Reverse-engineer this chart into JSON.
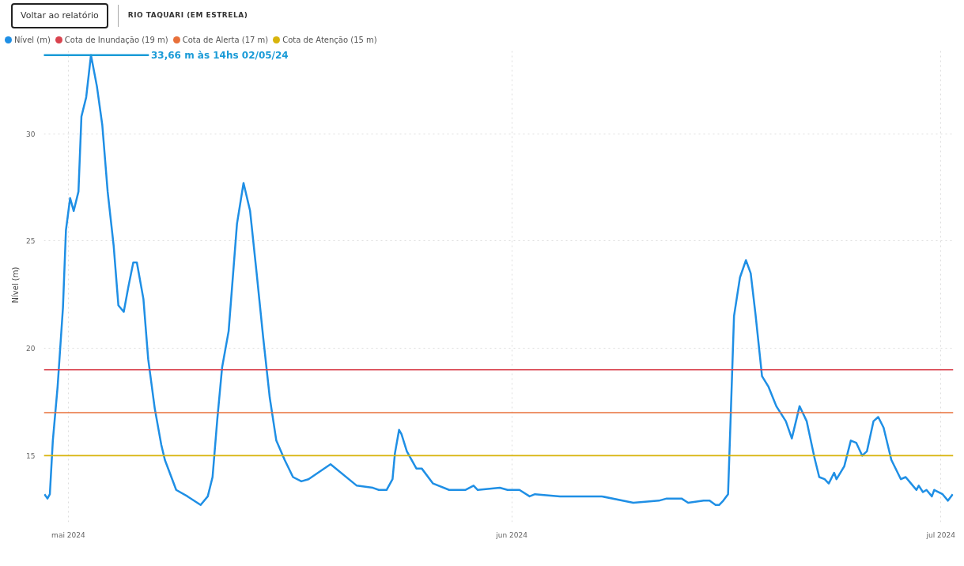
{
  "chart_data": {
    "type": "line",
    "title": "RIO TAQUARI (EM ESTRELA)",
    "ylabel": "Nível (m)",
    "annotations": [
      "Voltar ao relatório",
      "33,66 m às 14hs 02/05/24"
    ],
    "x": [
      "2024-04-29T08:00",
      "2024-04-29T13:00",
      "2024-04-29T17:00",
      "2024-04-29T22:00",
      "2024-04-30T06:00",
      "2024-04-30T15:00",
      "2024-04-30T20:00",
      "2024-05-01T03:00",
      "2024-05-01T09:00",
      "2024-05-01T17:00",
      "2024-05-01T22:00",
      "2024-05-02T06:00",
      "2024-05-02T14:00",
      "2024-05-03T00:00",
      "2024-05-03T09:00",
      "2024-05-03T18:00",
      "2024-05-04T04:00",
      "2024-05-04T12:00",
      "2024-05-04T21:00",
      "2024-05-05T05:00",
      "2024-05-05T13:00",
      "2024-05-05T19:00",
      "2024-05-06T06:00",
      "2024-05-06T14:00",
      "2024-05-07T01:00",
      "2024-05-07T12:00",
      "2024-05-07T18:00",
      "2024-05-08T13:00",
      "2024-05-09T08:00",
      "2024-05-10T06:00",
      "2024-05-10T18:00",
      "2024-05-11T02:00",
      "2024-05-11T10:00",
      "2024-05-11T18:00",
      "2024-05-12T05:00",
      "2024-05-12T19:00",
      "2024-05-13T06:00",
      "2024-05-13T17:00",
      "2024-05-14T04:00",
      "2024-05-14T15:00",
      "2024-05-15T02:00",
      "2024-05-15T13:00",
      "2024-05-16T03:00",
      "2024-05-16T17:00",
      "2024-05-17T07:00",
      "2024-05-17T19:00",
      "2024-05-19T08:00",
      "2024-05-21T04:00",
      "2024-05-22T07:00",
      "2024-05-22T17:00",
      "2024-05-23T06:00",
      "2024-05-23T16:00",
      "2024-05-23T20:00",
      "2024-05-24T03:00",
      "2024-05-24T07:00",
      "2024-05-24T16:00",
      "2024-05-25T08:00",
      "2024-05-25T17:00",
      "2024-05-26T12:00",
      "2024-05-27T15:00",
      "2024-05-28T18:00",
      "2024-05-29T08:00",
      "2024-05-29T15:00",
      "2024-05-31T04:00",
      "2024-05-31T17:00",
      "2024-06-01T13:00",
      "2024-06-02T06:00",
      "2024-06-02T15:00",
      "2024-06-04T09:00",
      "2024-06-04T16:00",
      "2024-06-05T03:00",
      "2024-06-07T07:00",
      "2024-06-09T12:00",
      "2024-06-11T07:00",
      "2024-06-11T20:00",
      "2024-06-12T21:00",
      "2024-06-13T08:00",
      "2024-06-14T10:00",
      "2024-06-14T20:00",
      "2024-06-15T06:00",
      "2024-06-15T12:00",
      "2024-06-15T19:00",
      "2024-06-16T03:00",
      "2024-06-16T08:00",
      "2024-06-16T13:00",
      "2024-06-16T23:00",
      "2024-06-17T09:00",
      "2024-06-17T17:00",
      "2024-06-18T01:00",
      "2024-06-18T12:00",
      "2024-06-18T23:00",
      "2024-06-19T12:00",
      "2024-06-20T04:00",
      "2024-06-20T14:00",
      "2024-06-21T03:00",
      "2024-06-21T15:00",
      "2024-06-22T04:00",
      "2024-06-22T12:00",
      "2024-06-22T21:00",
      "2024-06-23T04:00",
      "2024-06-23T13:00",
      "2024-06-23T17:00",
      "2024-06-24T06:00",
      "2024-06-24T17:00",
      "2024-06-25T02:00",
      "2024-06-25T12:00",
      "2024-06-25T20:00",
      "2024-06-26T07:00",
      "2024-06-26T15:00",
      "2024-06-27T00:00",
      "2024-06-27T13:00",
      "2024-06-28T05:00",
      "2024-06-28T13:00",
      "2024-06-28T22:00",
      "2024-06-29T07:00",
      "2024-06-29T11:00",
      "2024-06-29T18:00",
      "2024-06-30T00:00",
      "2024-06-30T09:00",
      "2024-06-30T13:00",
      "2024-07-01T03:00",
      "2024-07-01T12:00",
      "2024-07-01T20:00"
    ],
    "series": [
      {
        "name": "Nível (m)",
        "color": "#1f8fe5",
        "values": [
          13.2,
          13.0,
          13.2,
          15.7,
          18.2,
          21.9,
          25.5,
          27.0,
          26.4,
          27.3,
          30.8,
          31.7,
          33.66,
          32.2,
          30.4,
          27.3,
          24.8,
          22.0,
          21.7,
          22.9,
          24.0,
          24.0,
          22.3,
          19.5,
          17.2,
          15.5,
          14.8,
          13.4,
          13.1,
          12.7,
          13.1,
          14.0,
          16.7,
          19.1,
          20.8,
          25.8,
          27.7,
          26.4,
          23.5,
          20.5,
          17.7,
          15.7,
          14.8,
          14.0,
          13.8,
          13.9,
          14.6,
          13.6,
          13.5,
          13.4,
          13.4,
          13.9,
          15.1,
          16.2,
          16.0,
          15.2,
          14.4,
          14.4,
          13.7,
          13.4,
          13.4,
          13.6,
          13.4,
          13.5,
          13.4,
          13.4,
          13.1,
          13.2,
          13.1,
          13.1,
          13.1,
          13.1,
          12.8,
          12.9,
          13.0,
          13.0,
          12.8,
          12.9,
          12.9,
          12.7,
          12.7,
          12.9,
          13.2,
          17.3,
          21.5,
          23.3,
          24.1,
          23.5,
          21.6,
          18.7,
          18.2,
          17.3,
          16.6,
          15.8,
          17.3,
          16.6,
          14.9,
          14.0,
          13.9,
          13.7,
          14.2,
          13.9,
          14.5,
          15.7,
          15.6,
          15.0,
          15.2,
          16.6,
          16.8,
          16.3,
          14.8,
          13.9,
          14.0,
          13.7,
          13.4,
          13.6,
          13.3,
          13.4,
          13.1,
          13.4,
          13.2,
          12.9,
          13.2
        ]
      }
    ],
    "ref_lines": [
      {
        "axis": "y",
        "value": 19,
        "label": "Cota de Inundação (19 m)",
        "color": "#d9434e"
      },
      {
        "axis": "y",
        "value": 17,
        "label": "Cota de Alerta (17 m)",
        "color": "#e8703a"
      },
      {
        "axis": "y",
        "value": 15,
        "label": "Cota de Atenção (15 m)",
        "color": "#d8b40c"
      }
    ],
    "xlim": [
      "2024-04-29T07:00",
      "2024-07-01T21:00"
    ],
    "xticks": [
      {
        "value": "2024-05-01",
        "label": "mai 2024"
      },
      {
        "value": "2024-06-01",
        "label": "jun 2024"
      },
      {
        "value": "2024-07-01",
        "label": "jul 2024"
      }
    ],
    "ylim": [
      11.9,
      34.0
    ],
    "yticks": [
      15,
      20,
      25,
      30
    ],
    "grid": true,
    "legend": "top left",
    "marker": "none",
    "line_style": "solid"
  }
}
